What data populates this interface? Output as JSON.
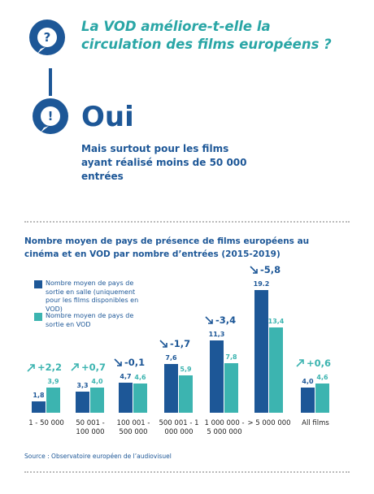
{
  "header": {
    "question": "La VOD améliore-t-elle la circulation des films européens ?",
    "answer": "Oui",
    "answer_detail": "Mais surtout pour les films ayant réalisé moins de 50 000 entrées"
  },
  "chart_data": {
    "type": "bar",
    "title": "Nombre moyen de pays de présence de films européens au cinéma et en VOD par nombre d’entrées (2015-2019)",
    "categories": [
      "1 - 50 000",
      "50 001 - 100 000",
      "100 001 - 500 000",
      "500 001 - 1 000 000",
      "1 000 000 - 5 000 000",
      "> 5 000 000",
      "All films"
    ],
    "series": [
      {
        "name": "Nombre moyen de pays de sortie en salle (uniquement pour les films disponibles en VOD)",
        "color": "#1d5797",
        "values": [
          1.8,
          3.3,
          4.7,
          7.6,
          11.3,
          19.2,
          4.0
        ],
        "value_labels": [
          "1,8",
          "3,3",
          "4,7",
          "7,6",
          "11,3",
          "19.2",
          "4,0"
        ]
      },
      {
        "name": "Nombre moyen de pays de sortie en VOD",
        "color": "#3cb4b0",
        "values": [
          3.9,
          4.0,
          4.6,
          5.9,
          7.8,
          13.4,
          4.6
        ],
        "value_labels": [
          "3,9",
          "4,0",
          "4,6",
          "5,9",
          "7,8",
          "13,4",
          "4,6"
        ]
      }
    ],
    "differences": {
      "values": [
        2.2,
        0.7,
        -0.1,
        -1.7,
        -3.4,
        -5.8,
        0.6
      ],
      "value_labels": [
        "+2,2",
        "+0,7",
        "-0,1",
        "-1,7",
        "-3,4",
        "-5,8",
        "+0,6"
      ]
    },
    "source": "Source : Observatoire européen de l’audiovisuel"
  }
}
